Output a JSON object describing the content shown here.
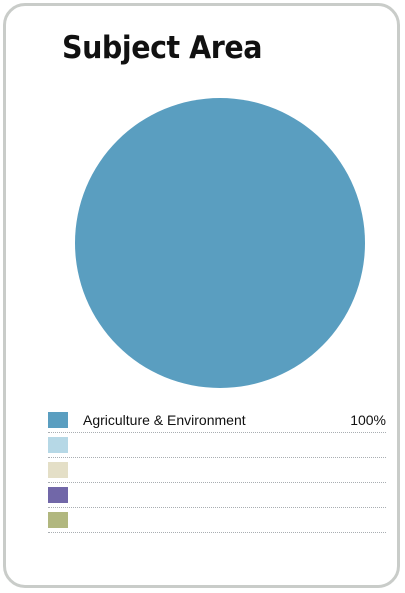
{
  "chart_data": {
    "type": "pie",
    "title": "Subject Area",
    "categories": [
      "Agriculture & Environment",
      "",
      "",
      "",
      ""
    ],
    "values": [
      100,
      0,
      0,
      0,
      0
    ],
    "value_labels": [
      "100%",
      "",
      "",
      "",
      ""
    ],
    "colors": [
      "#5a9ec0",
      "#b6d8e6",
      "#e4dfc7",
      "#7167a8",
      "#b1b77f"
    ],
    "legend": "below"
  }
}
